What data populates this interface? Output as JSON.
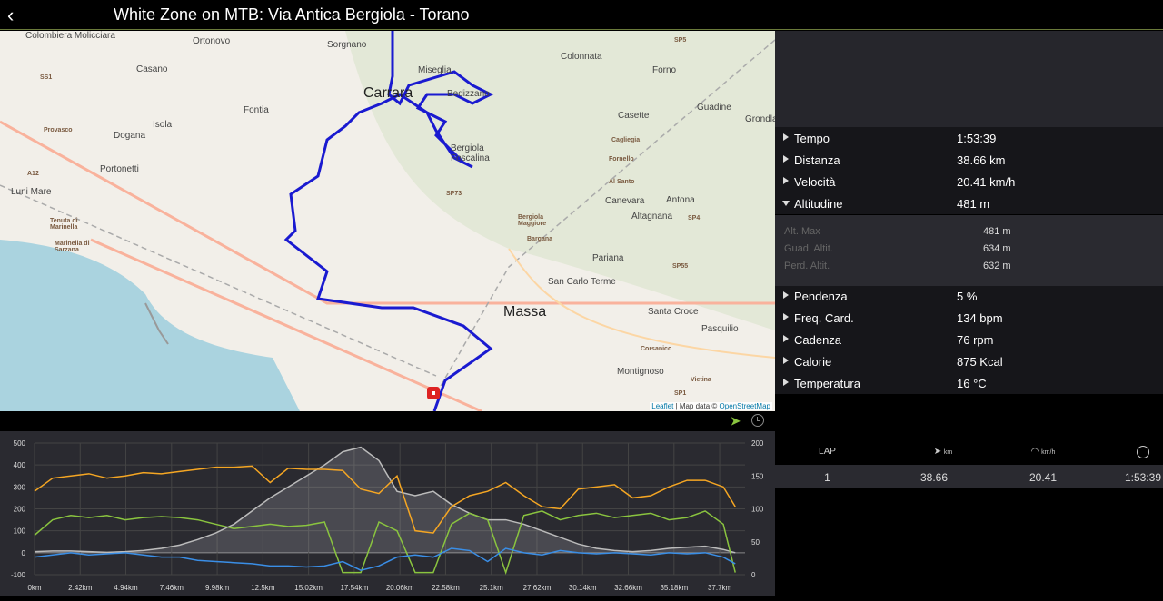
{
  "header": {
    "title": "White Zone on MTB: Via Antica Bergiola - Torano",
    "back_icon": "chevron-left-icon"
  },
  "map": {
    "labels": [
      "Colombiera Molicciara",
      "Ortonovo",
      "Sorgnano",
      "Colonnata",
      "Forno",
      "Casano",
      "Miseglia",
      "Carrara",
      "Bedizzano",
      "SS1",
      "Fontia",
      "Casette",
      "Guadine",
      "Grondla",
      "Dogana",
      "Isola",
      "Provasco",
      "Cagliegia",
      "Bergiola Foscalina",
      "Portonetti",
      "Fornello",
      "A12",
      "Luni Mare",
      "Al Santo",
      "Canevara",
      "Antona",
      "SP73",
      "Altagnana",
      "SP4",
      "Tenuta di Marinella",
      "Bergiola Maggiore",
      "Bargana",
      "Marinella di Sarzana",
      "Pariana",
      "SP55",
      "San Carlo Terme",
      "Massa",
      "Santa Croce",
      "Pasquilio",
      "Corsanico",
      "Montignoso",
      "Vietina",
      "SP5",
      "SP1"
    ],
    "attribution": {
      "leaflet": "Leaflet",
      "sep": " | Map data © ",
      "osm": "OpenStreetMap"
    }
  },
  "toolbar": {
    "route_icon": "shoe-icon",
    "time_icon": "clock-icon"
  },
  "stats": {
    "rows": [
      {
        "label": "Tempo",
        "value": "1:53:39",
        "expanded": false
      },
      {
        "label": "Distanza",
        "value": "38.66 km",
        "expanded": false
      },
      {
        "label": "Velocità",
        "value": "20.41 km/h",
        "expanded": false
      },
      {
        "label": "Altitudine",
        "value": "481 m",
        "expanded": true
      },
      {
        "label": "Pendenza",
        "value": "5 %",
        "expanded": false
      },
      {
        "label": "Freq. Card.",
        "value": "134 bpm",
        "expanded": false
      },
      {
        "label": "Cadenza",
        "value": "76 rpm",
        "expanded": false
      },
      {
        "label": "Calorie",
        "value": "875 Kcal",
        "expanded": false
      },
      {
        "label": "Temperatura",
        "value": "16 °C",
        "expanded": false
      }
    ],
    "altitude_details": [
      {
        "label": "Alt. Max",
        "value": "481 m"
      },
      {
        "label": "Guad. Altit.",
        "value": "634 m"
      },
      {
        "label": "Perd. Altit.",
        "value": "632 m"
      }
    ]
  },
  "laps": {
    "headers": {
      "lap": "LAP",
      "distance_unit": "km",
      "speed_unit": "km/h"
    },
    "rows": [
      {
        "lap": "1",
        "distance": "38.66",
        "speed": "20.41",
        "time": "1:53:39"
      }
    ]
  },
  "chart_data": {
    "type": "line",
    "x_ticks": [
      "0km",
      "2.42km",
      "4.94km",
      "7.46km",
      "9.98km",
      "12.5km",
      "15.02km",
      "17.54km",
      "20.06km",
      "22.58km",
      "25.1km",
      "27.62km",
      "30.14km",
      "32.66km",
      "35.18km",
      "37.7km"
    ],
    "x_range": [
      0,
      39.2
    ],
    "y_left_ticks": [
      "500",
      "400",
      "300",
      "200",
      "100",
      "0",
      "-100"
    ],
    "ylim_left": [
      -100,
      500
    ],
    "y_right_ticks": [
      "200",
      "150",
      "100",
      "50",
      "0"
    ],
    "ylim_right": [
      0,
      200
    ],
    "x_km": [
      0,
      1,
      2,
      3,
      4,
      5,
      6,
      7,
      8,
      9,
      10,
      11,
      12,
      13,
      14,
      15,
      16,
      17,
      18,
      19,
      20,
      21,
      22,
      23,
      24,
      25,
      26,
      27,
      28,
      29,
      30,
      31,
      32,
      33,
      34,
      35,
      36,
      37,
      38,
      38.66
    ],
    "series": [
      {
        "name": "altitude",
        "color": "#bbbbbb",
        "fill": true,
        "values": [
          5,
          8,
          8,
          5,
          2,
          5,
          10,
          20,
          35,
          60,
          90,
          130,
          190,
          250,
          300,
          350,
          400,
          460,
          481,
          420,
          280,
          260,
          280,
          220,
          180,
          150,
          150,
          130,
          100,
          70,
          40,
          20,
          10,
          5,
          10,
          20,
          25,
          30,
          15,
          0
        ]
      },
      {
        "name": "heart-rate",
        "color": "#f5a623",
        "values": [
          280,
          340,
          350,
          360,
          340,
          350,
          365,
          360,
          370,
          380,
          390,
          390,
          395,
          320,
          385,
          380,
          380,
          375,
          290,
          270,
          350,
          100,
          90,
          210,
          260,
          280,
          320,
          260,
          210,
          200,
          290,
          300,
          310,
          250,
          260,
          300,
          330,
          330,
          300,
          210
        ]
      },
      {
        "name": "speed",
        "color": "#8ac43f",
        "values": [
          80,
          150,
          170,
          160,
          170,
          150,
          160,
          165,
          160,
          150,
          130,
          110,
          120,
          130,
          120,
          125,
          140,
          -90,
          -90,
          140,
          100,
          -90,
          -90,
          130,
          180,
          150,
          -90,
          170,
          190,
          150,
          170,
          180,
          160,
          170,
          180,
          150,
          160,
          190,
          130,
          -90
        ]
      },
      {
        "name": "gradient",
        "color": "#3a8ee6",
        "values": [
          -20,
          -10,
          0,
          -10,
          -5,
          0,
          -10,
          -20,
          -20,
          -35,
          -40,
          -45,
          -50,
          -60,
          -60,
          -65,
          -60,
          -40,
          -80,
          -60,
          -20,
          -10,
          -20,
          20,
          10,
          -40,
          20,
          0,
          -10,
          10,
          0,
          -5,
          0,
          -5,
          -10,
          0,
          -5,
          0,
          -20,
          -50
        ]
      }
    ]
  }
}
